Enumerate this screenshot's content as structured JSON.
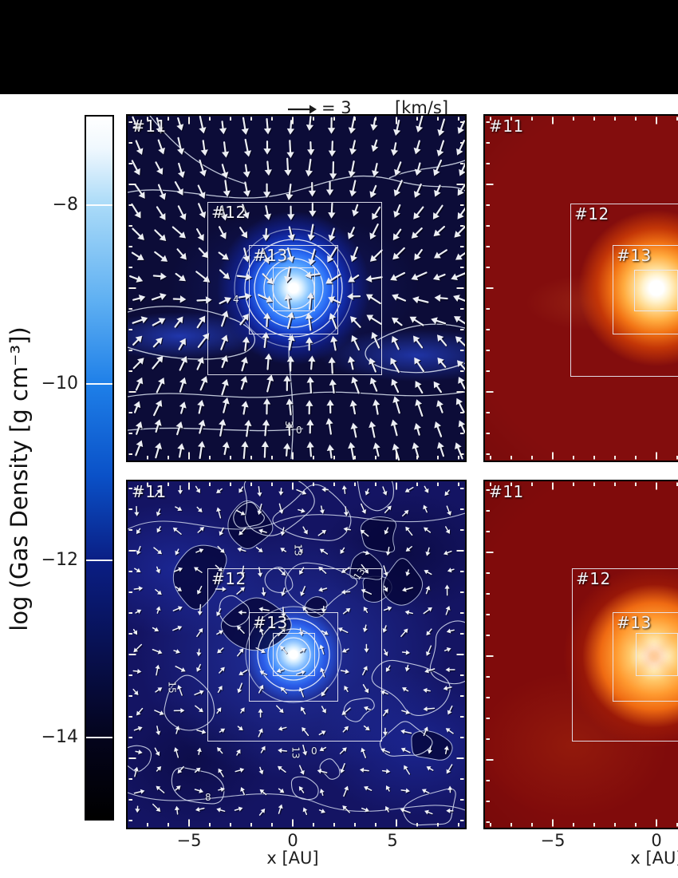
{
  "legend": {
    "arrow_icon": "right-arrow",
    "value": "= 3",
    "units": "[km/s]"
  },
  "colorbar": {
    "label": "log (Gas Density [g cm⁻³])",
    "ticks": [
      {
        "label": "−8"
      },
      {
        "label": "−10"
      },
      {
        "label": "−12"
      },
      {
        "label": "−14"
      }
    ]
  },
  "panels": {
    "top_left": {
      "label_11": "#11",
      "label_12": "#12",
      "label_13": "#13",
      "contour_labels": [
        {
          "text": "4"
        },
        {
          "text": "3"
        },
        {
          "text": "0"
        }
      ]
    },
    "top_right": {
      "label_11": "#11",
      "label_12": "#12",
      "label_13": "#13"
    },
    "bottom_left": {
      "label_11": "#11",
      "label_12": "#12",
      "label_13": "#13",
      "contour_labels": [
        {
          "text": "13"
        },
        {
          "text": "13"
        },
        {
          "text": "15"
        },
        {
          "text": "13"
        },
        {
          "text": "0"
        },
        {
          "text": "8"
        }
      ]
    },
    "bottom_right": {
      "label_11": "#11",
      "label_12": "#12",
      "label_13": "#13"
    }
  },
  "x_axis_left": {
    "label": "x [AU]",
    "ticks": [
      {
        "label": "−5"
      },
      {
        "label": "0"
      },
      {
        "label": "5"
      }
    ]
  },
  "x_axis_right": {
    "label": "x [AU]",
    "ticks": [
      {
        "label": "−5"
      },
      {
        "label": "0"
      }
    ]
  },
  "colors": {
    "blue_panel_bg": "#0c0c38",
    "blue_turbulent_bg": "#141463",
    "red_panel_bg": "#830d0d",
    "contour_line": "#dfe7f4",
    "header_bar": "#000000"
  },
  "chart_data": [
    {
      "type": "heatmap",
      "panel": "top-left",
      "quantity": "log gas density [g cm^-3]",
      "colormap": "blue",
      "x_range_au": [
        -8,
        8
      ],
      "y_range_au": [
        -8,
        8
      ],
      "x_ticks_au": [
        -5,
        0,
        5
      ],
      "colorbar_tick_values": [
        -8,
        -10,
        -12,
        -14
      ],
      "overlays": [
        "velocity vector field, reference arrow = 3 km/s",
        "white density contours",
        "nested refinement boxes #11, #12, #13 (~±4, ±2, ±1 AU)"
      ],
      "features": "smooth converging inflow onto bright central condensation at origin"
    },
    {
      "type": "heatmap",
      "panel": "top-right",
      "quantity": "unlabeled (its colorbar is cropped out of view)",
      "colormap": "red-orange",
      "x_ticks_au": [
        -5,
        0
      ],
      "overlays": [
        "nested refinement boxes #11, #12, #13"
      ],
      "features": "bright white-orange hot spot at origin on dark red background"
    },
    {
      "type": "heatmap",
      "panel": "bottom-left",
      "quantity": "log gas density [g cm^-3]",
      "colormap": "blue",
      "x_ticks_au": [
        -5,
        0,
        5
      ],
      "colorbar_tick_values": [
        -8,
        -10,
        -12,
        -14
      ],
      "overlays": [
        "turbulent velocity vector field",
        "many density contours with small numeric labels (13, 15, 8, 0)",
        "nested refinement boxes #11, #12, #13"
      ],
      "features": "turbulent filamentary density field with bright central condensation"
    },
    {
      "type": "heatmap",
      "panel": "bottom-right",
      "quantity": "unlabeled (its colorbar is cropped out of view)",
      "colormap": "red-orange",
      "x_ticks_au": [
        -5,
        0
      ],
      "overlays": [
        "nested refinement boxes #11, #12, #13"
      ],
      "features": "diffuse diamond-shaped hot glow around central source"
    }
  ],
  "vector_scale": {
    "value": 3,
    "units": "km/s"
  }
}
